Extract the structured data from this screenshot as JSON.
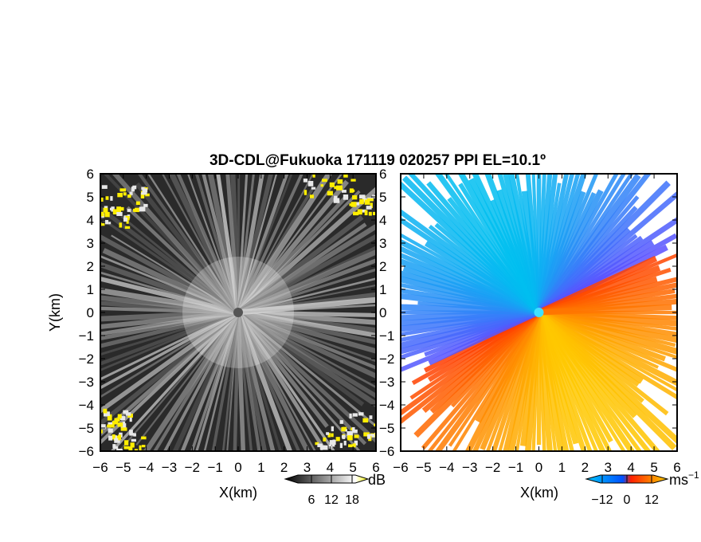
{
  "chart_data": [
    {
      "type": "heatmap",
      "title": "3D-CDL@Fukuoka 171119 020257 PPI EL=10.1º",
      "panel": "left",
      "xlabel": "X(km)",
      "ylabel": "Y(km)",
      "xlim": [
        -6,
        6
      ],
      "ylim": [
        -6,
        6
      ],
      "xticks": [
        -6,
        -5,
        -4,
        -3,
        -2,
        -1,
        0,
        1,
        2,
        3,
        4,
        5,
        6
      ],
      "yticks": [
        -6,
        -5,
        -4,
        -3,
        -2,
        -1,
        0,
        1,
        2,
        3,
        4,
        5,
        6
      ],
      "colorbar": {
        "unit": "dB",
        "ticks": [
          "6",
          "12",
          "18"
        ],
        "colors": [
          "#000000",
          "#ffffff",
          "#ffff00"
        ]
      },
      "highlight_color": "#ffee00",
      "background_color": "#2a2a2a"
    },
    {
      "type": "heatmap",
      "panel": "right",
      "xlabel": "X(km)",
      "ylabel": "",
      "xlim": [
        -6,
        6
      ],
      "ylim": [
        -6,
        6
      ],
      "xticks": [
        -6,
        -5,
        -4,
        -3,
        -2,
        -1,
        0,
        1,
        2,
        3,
        4,
        5,
        6
      ],
      "yticks": [
        -6,
        -5,
        -4,
        -3,
        -2,
        -1,
        0,
        1,
        2,
        3,
        4,
        5,
        6
      ],
      "colorbar": {
        "unit": "ms",
        "unit_exponent": "−1",
        "ticks": [
          "−12",
          "0",
          "12"
        ],
        "colors": [
          "#00c8ff",
          "#0050ff",
          "#ff2000",
          "#ffd000"
        ]
      },
      "approaching_color": "#3aa8f0",
      "receding_color": "#ff8a00"
    }
  ],
  "tick_labels": [
    "−6",
    "−5",
    "−4",
    "−3",
    "−2",
    "−1",
    "0",
    "1",
    "2",
    "3",
    "4",
    "5",
    "6"
  ]
}
